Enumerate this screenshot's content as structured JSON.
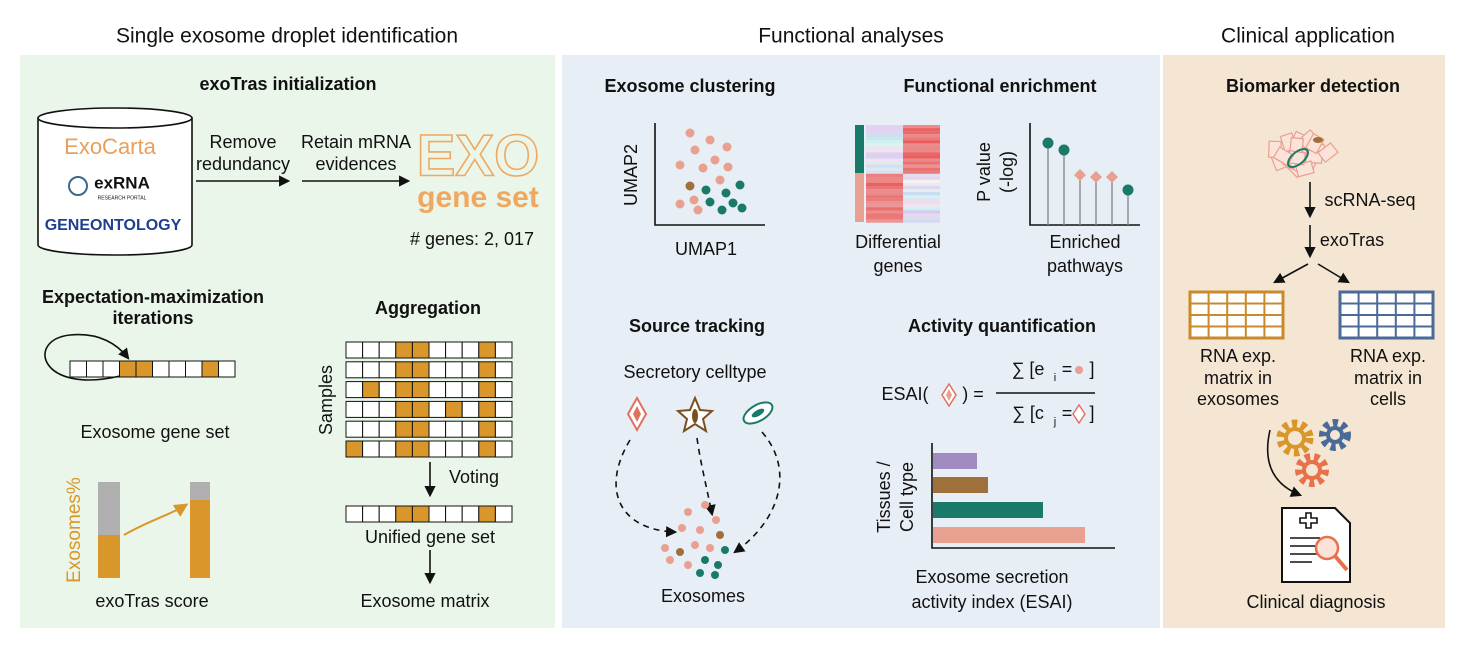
{
  "sections": [
    {
      "title": "Single exosome droplet identification"
    },
    {
      "title": "Functional analyses"
    },
    {
      "title": "Clinical application"
    }
  ],
  "initialization": {
    "title": "exoTras initialization",
    "databases": [
      "ExoCarta",
      "exRNA",
      "RESEARCH PORTAL",
      "GENEONTOLOGY"
    ],
    "step1": [
      "Remove",
      "redundancy"
    ],
    "step2": [
      "Retain mRNA",
      "evidences"
    ],
    "gene_set": [
      "EXO",
      "gene set"
    ],
    "count": "# genes: 2, 017"
  },
  "em": {
    "title": [
      "Expectation-maximization",
      "iterations"
    ],
    "label": "Exosome gene set",
    "axis": "Exosomes%",
    "score": "exoTras score"
  },
  "aggregation": {
    "title": "Aggregation",
    "axis": "Samples",
    "voting": "Voting",
    "unified": "Unified gene set",
    "matrix": "Exosome matrix"
  },
  "clustering": {
    "title": "Exosome clustering",
    "y_axis": "UMAP2",
    "x_axis": "UMAP1"
  },
  "enrichment": {
    "title": "Functional enrichment",
    "heatmap": [
      "Differential",
      "genes"
    ],
    "y_axis": [
      "P value",
      "(-log)"
    ],
    "x_axis": [
      "Enriched",
      "pathways"
    ]
  },
  "source": {
    "title": "Source tracking",
    "celltype": "Secretory celltype",
    "exosomes": "Exosomes"
  },
  "activity": {
    "title": "Activity quantification",
    "formula": {
      "lhs": "ESAI(",
      "eq": ") =",
      "num": [
        "∑ [e",
        "i",
        "=",
        "]"
      ],
      "den": [
        "∑ [c",
        "j",
        "=",
        "]"
      ]
    },
    "y_axis": [
      "Tissues /",
      "Cell type"
    ],
    "x_axis": [
      "Exosome secretion",
      "activity index (ESAI)"
    ]
  },
  "clinical": {
    "title": "Biomarker detection",
    "step1": "scRNA-seq",
    "step2": "exoTras",
    "left_matrix": [
      "RNA exp.",
      "matrix in",
      "exosomes"
    ],
    "right_matrix": [
      "RNA exp.",
      "matrix in",
      "cells"
    ],
    "diagnosis": "Clinical diagnosis"
  }
}
